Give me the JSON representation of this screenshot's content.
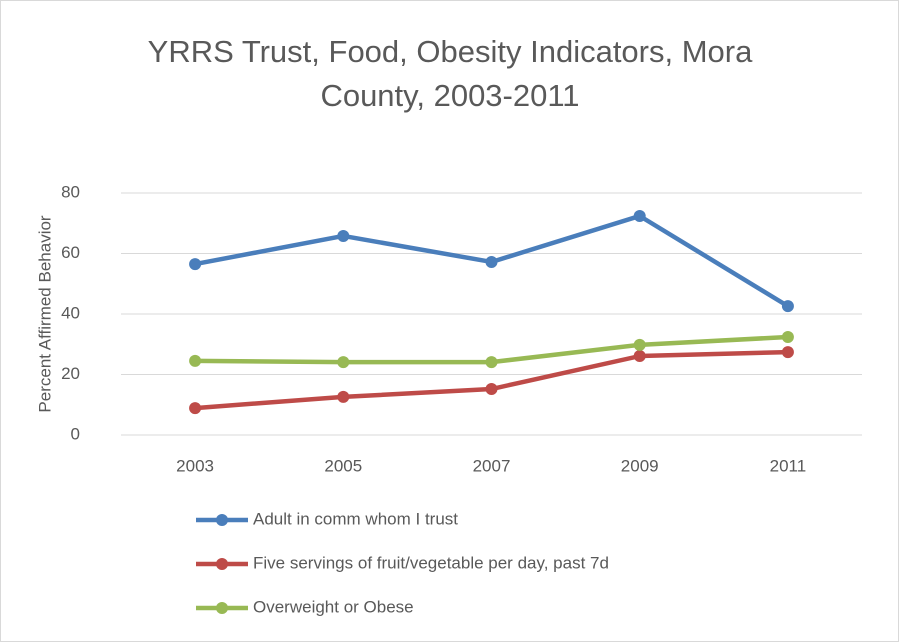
{
  "chart_data": {
    "type": "line",
    "title": "YRRS Trust, Food, Obesity Indicators, Mora County, 2003-2011",
    "y_label": "Percent Affirmed Behavior",
    "categories": [
      "2003",
      "2005",
      "2007",
      "2009",
      "2011"
    ],
    "series": [
      {
        "name": "Adult in comm whom I trust",
        "color": "#4a7ebb",
        "values": [
          56.5,
          65.8,
          57.2,
          72.4,
          42.6
        ]
      },
      {
        "name": "Five servings of fruit/vegetable per day, past 7d",
        "color": "#be4b48",
        "values": [
          8.9,
          12.6,
          15.2,
          26.1,
          27.4
        ]
      },
      {
        "name": "Overweight or Obese",
        "color": "#98b954",
        "values": [
          24.5,
          24.1,
          24.1,
          29.8,
          32.4
        ]
      }
    ],
    "ylim": [
      0,
      80
    ],
    "yticks": [
      0,
      20,
      40,
      60,
      80
    ],
    "grid": true
  }
}
